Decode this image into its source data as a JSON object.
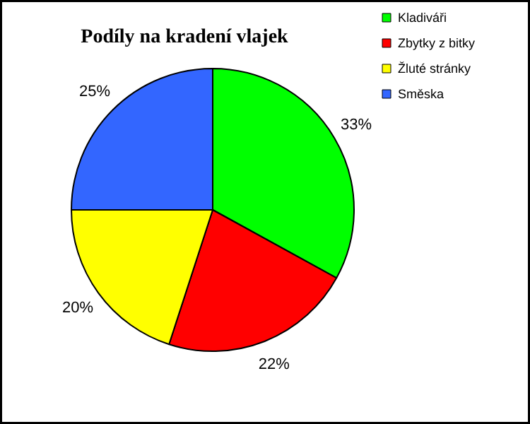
{
  "chart_data": {
    "type": "pie",
    "title": "Podíly na kradení vlajek",
    "categories": [
      "Kladiváři",
      "Zbytky z bitky",
      "Žluté stránky",
      "Směska"
    ],
    "values": [
      33,
      22,
      20,
      25
    ],
    "colors": [
      "#00ff00",
      "#ff0000",
      "#ffff00",
      "#3366ff"
    ],
    "value_labels": [
      "33%",
      "22%",
      "20%",
      "25%"
    ],
    "legend": "top right"
  }
}
